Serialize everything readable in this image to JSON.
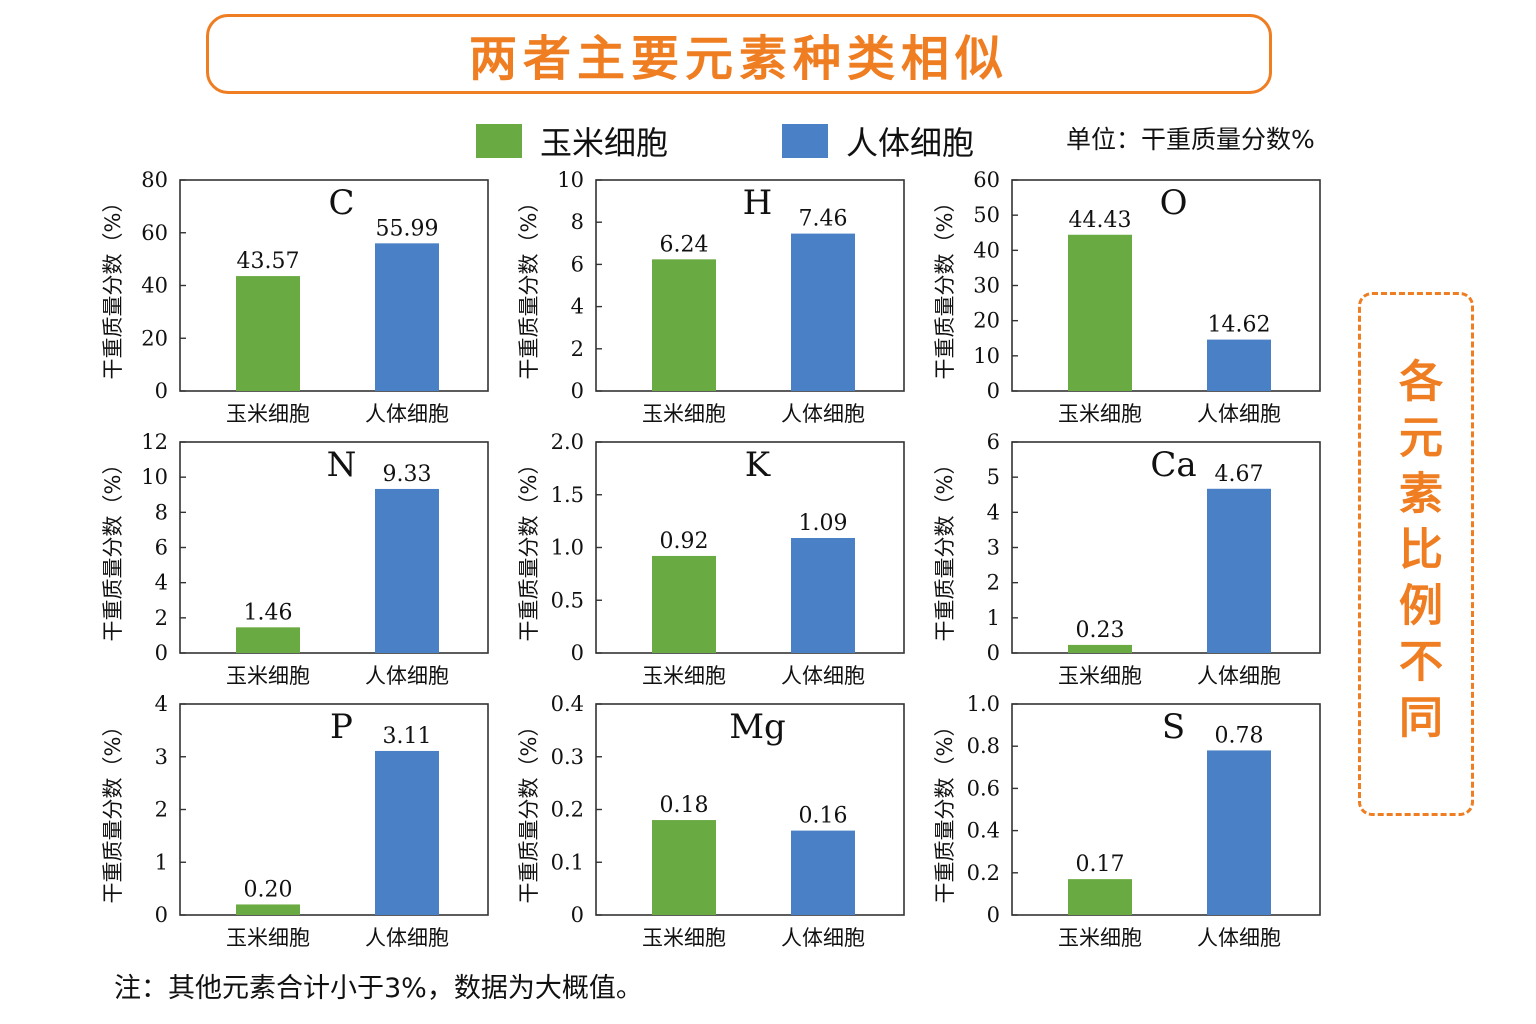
{
  "title": "两者主要元素种类相似",
  "legend": {
    "maize_label": "玉米细胞",
    "human_label": "人体细胞",
    "maize_color": "#6aaa42",
    "human_color": "#4a80c6"
  },
  "unit_note": "单位：干重质量分数%",
  "side_note": "各元素比例不同",
  "footnote": "注：其他元素合计小于3%，数据为大概值。",
  "accent_color": "#ef7d22",
  "chart_data": [
    {
      "type": "bar",
      "title": "C",
      "ylabel": "干重质量分数（%）",
      "categories": [
        "玉米细胞",
        "人体细胞"
      ],
      "values": [
        43.57,
        55.99
      ],
      "value_labels": [
        "43.57",
        "55.99"
      ],
      "ylim": [
        0,
        80
      ],
      "yticks": [
        0,
        20,
        40,
        60,
        80
      ],
      "ytick_labels": [
        "0",
        "20",
        "40",
        "60",
        "80"
      ],
      "grid": false
    },
    {
      "type": "bar",
      "title": "H",
      "ylabel": "干重质量分数（%）",
      "categories": [
        "玉米细胞",
        "人体细胞"
      ],
      "values": [
        6.24,
        7.46
      ],
      "value_labels": [
        "6.24",
        "7.46"
      ],
      "ylim": [
        0,
        10
      ],
      "yticks": [
        0,
        2,
        4,
        6,
        8,
        10
      ],
      "ytick_labels": [
        "0",
        "2",
        "4",
        "6",
        "8",
        "10"
      ],
      "grid": false
    },
    {
      "type": "bar",
      "title": "O",
      "ylabel": "干重质量分数（%）",
      "categories": [
        "玉米细胞",
        "人体细胞"
      ],
      "values": [
        44.43,
        14.62
      ],
      "value_labels": [
        "44.43",
        "14.62"
      ],
      "ylim": [
        0,
        60
      ],
      "yticks": [
        0,
        10,
        20,
        30,
        40,
        50,
        60
      ],
      "ytick_labels": [
        "0",
        "10",
        "20",
        "30",
        "40",
        "50",
        "60"
      ],
      "grid": false
    },
    {
      "type": "bar",
      "title": "N",
      "ylabel": "干重质量分数（%）",
      "categories": [
        "玉米细胞",
        "人体细胞"
      ],
      "values": [
        1.46,
        9.33
      ],
      "value_labels": [
        "1.46",
        "9.33"
      ],
      "ylim": [
        0,
        12
      ],
      "yticks": [
        0,
        2,
        4,
        6,
        8,
        10,
        12
      ],
      "ytick_labels": [
        "0",
        "2",
        "4",
        "6",
        "8",
        "10",
        "12"
      ],
      "grid": false
    },
    {
      "type": "bar",
      "title": "K",
      "ylabel": "干重质量分数（%）",
      "categories": [
        "玉米细胞",
        "人体细胞"
      ],
      "values": [
        0.92,
        1.09
      ],
      "value_labels": [
        "0.92",
        "1.09"
      ],
      "ylim": [
        0,
        2.0
      ],
      "yticks": [
        0,
        0.5,
        1.0,
        1.5,
        2.0
      ],
      "ytick_labels": [
        "0",
        "0.5",
        "1.0",
        "1.5",
        "2.0"
      ],
      "grid": false
    },
    {
      "type": "bar",
      "title": "Ca",
      "ylabel": "干重质量分数（%）",
      "categories": [
        "玉米细胞",
        "人体细胞"
      ],
      "values": [
        0.23,
        4.67
      ],
      "value_labels": [
        "0.23",
        "4.67"
      ],
      "ylim": [
        0,
        6
      ],
      "yticks": [
        0,
        1,
        2,
        3,
        4,
        5,
        6
      ],
      "ytick_labels": [
        "0",
        "1",
        "2",
        "3",
        "4",
        "5",
        "6"
      ],
      "grid": false
    },
    {
      "type": "bar",
      "title": "P",
      "ylabel": "干重质量分数（%）",
      "categories": [
        "玉米细胞",
        "人体细胞"
      ],
      "values": [
        0.2,
        3.11
      ],
      "value_labels": [
        "0.20",
        "3.11"
      ],
      "ylim": [
        0,
        4
      ],
      "yticks": [
        0,
        1,
        2,
        3,
        4
      ],
      "ytick_labels": [
        "0",
        "1",
        "2",
        "3",
        "4"
      ],
      "grid": false
    },
    {
      "type": "bar",
      "title": "Mg",
      "ylabel": "干重质量分数（%）",
      "categories": [
        "玉米细胞",
        "人体细胞"
      ],
      "values": [
        0.18,
        0.16
      ],
      "value_labels": [
        "0.18",
        "0.16"
      ],
      "ylim": [
        0,
        0.4
      ],
      "yticks": [
        0,
        0.1,
        0.2,
        0.3,
        0.4
      ],
      "ytick_labels": [
        "0",
        "0.1",
        "0.2",
        "0.3",
        "0.4"
      ],
      "grid": false
    },
    {
      "type": "bar",
      "title": "S",
      "ylabel": "干重质量分数（%）",
      "categories": [
        "玉米细胞",
        "人体细胞"
      ],
      "values": [
        0.17,
        0.78
      ],
      "value_labels": [
        "0.17",
        "0.78"
      ],
      "ylim": [
        0,
        1.0
      ],
      "yticks": [
        0,
        0.2,
        0.4,
        0.6,
        0.8,
        1.0
      ],
      "ytick_labels": [
        "0",
        "0.2",
        "0.4",
        "0.6",
        "0.8",
        "1.0"
      ],
      "grid": false
    }
  ]
}
